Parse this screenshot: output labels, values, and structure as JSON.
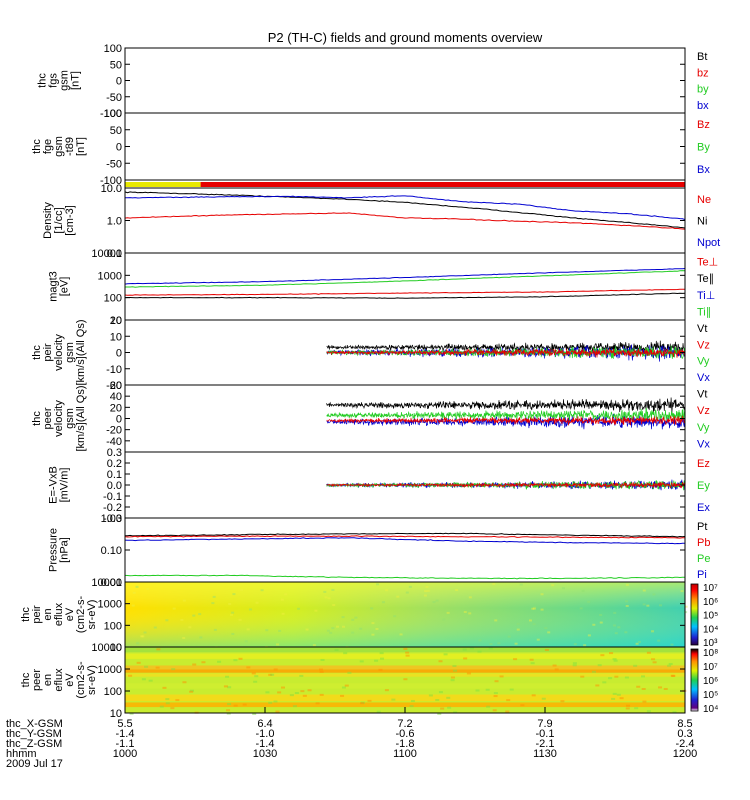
{
  "title": "P2 (TH-C) fields and ground moments overview",
  "colors": {
    "black": "#000000",
    "red": "#e60000",
    "green": "#22cc22",
    "blue": "#0000d0",
    "yellow": "#e8e800",
    "frame": "#000000"
  },
  "chart_data": {
    "type": "multi-panel time series",
    "title": "P2 (TH-C) fields and ground moments overview",
    "time_ticks": [
      "1000",
      "1030",
      "1100",
      "1130",
      "1200"
    ],
    "footer": {
      "rows": [
        {
          "label": "thc_X-GSM",
          "values": [
            "5.5",
            "6.4",
            "7.2",
            "7.9",
            "8.5"
          ]
        },
        {
          "label": "thc_Y-GSM",
          "values": [
            "-1.4",
            "-1.0",
            "-0.6",
            "-0.1",
            "0.3"
          ]
        },
        {
          "label": "thc_Z-GSM",
          "values": [
            "-1.1",
            "-1.4",
            "-1.8",
            "-2.1",
            "-2.4"
          ]
        },
        {
          "label": "hhmm",
          "values": [
            "1000",
            "1030",
            "1100",
            "1130",
            "1200"
          ]
        }
      ],
      "date": "2009 Jul 17"
    },
    "panels": [
      {
        "id": "fgs",
        "ylabel": [
          "thc",
          "fgs",
          "gsm",
          "[nT]"
        ],
        "scale": "linear",
        "yrange": [
          -100,
          100
        ],
        "ticks": [
          "100",
          "50",
          "0",
          "-50",
          "-100"
        ],
        "legend": [
          {
            "text": "Bt",
            "color": "black"
          },
          {
            "text": "bz",
            "color": "red"
          },
          {
            "text": "by",
            "color": "green"
          },
          {
            "text": "bx",
            "color": "blue"
          }
        ]
      },
      {
        "id": "fge",
        "ylabel": [
          "thc",
          "fge",
          "gsm",
          "-t89",
          "[nT]"
        ],
        "scale": "linear",
        "yrange": [
          -100,
          100
        ],
        "ticks": [
          "100",
          "50",
          "0",
          "-50",
          "-100"
        ],
        "legend": [
          {
            "text": "Bz",
            "color": "red"
          },
          {
            "text": "By",
            "color": "green"
          },
          {
            "text": "Bx",
            "color": "blue"
          }
        ]
      },
      {
        "id": "mode_bar",
        "mode_segments": [
          {
            "from": 0.0,
            "to": 0.135,
            "color": "yellow"
          },
          {
            "from": 0.135,
            "to": 1.0,
            "color": "red"
          }
        ]
      },
      {
        "id": "density",
        "ylabel": [
          "Density",
          "[1/cc]",
          "[cm-3]"
        ],
        "scale": "log",
        "yrange": [
          0.1,
          10
        ],
        "ticks": [
          "10.0",
          "1.0",
          "0.1"
        ],
        "legend": [
          {
            "text": "Ne",
            "color": "red"
          },
          {
            "text": "Ni",
            "color": "black"
          },
          {
            "text": "Npot",
            "color": "blue"
          }
        ],
        "series": [
          {
            "name": "Ni",
            "color": "black",
            "x": [
              0,
              0.1,
              0.2,
              0.3,
              0.4,
              0.5,
              0.6,
              0.7,
              0.8,
              0.9,
              1.0
            ],
            "y": [
              7.5,
              6.8,
              6.0,
              5.2,
              4.5,
              3.6,
              2.6,
              1.8,
              1.2,
              0.85,
              0.6
            ]
          },
          {
            "name": "Ne",
            "color": "red",
            "x": [
              0,
              0.1,
              0.2,
              0.3,
              0.4,
              0.5,
              0.6,
              0.7,
              0.8,
              0.9,
              1.0
            ],
            "y": [
              1.2,
              1.35,
              1.5,
              1.6,
              1.7,
              1.2,
              1.1,
              0.95,
              0.85,
              0.7,
              0.55
            ]
          },
          {
            "name": "Npot",
            "color": "blue",
            "x": [
              0,
              0.1,
              0.2,
              0.3,
              0.4,
              0.5,
              0.6,
              0.7,
              0.8,
              0.9,
              1.0
            ],
            "y": [
              5.0,
              5.2,
              5.4,
              5.5,
              5.0,
              5.8,
              3.8,
              3.2,
              2.0,
              1.6,
              1.1
            ]
          }
        ]
      },
      {
        "id": "temp",
        "ylabel": [
          "magt3",
          "[eV]"
        ],
        "scale": "log",
        "yrange": [
          10,
          10000
        ],
        "ticks": [
          "10000",
          "1000",
          "100",
          "10"
        ],
        "legend": [
          {
            "text": "Te⊥",
            "color": "red"
          },
          {
            "text": "Te∥",
            "color": "black"
          },
          {
            "text": "Ti⊥",
            "color": "blue"
          },
          {
            "text": "Ti∥",
            "color": "green"
          }
        ],
        "series": [
          {
            "name": "Ti⊥",
            "color": "blue",
            "x": [
              0,
              0.25,
              0.5,
              0.75,
              1.0
            ],
            "y": [
              420,
              520,
              800,
              1300,
              2000
            ]
          },
          {
            "name": "Ti∥",
            "color": "green",
            "x": [
              0,
              0.25,
              0.5,
              0.75,
              1.0
            ],
            "y": [
              300,
              360,
              560,
              950,
              1600
            ]
          },
          {
            "name": "Te⊥",
            "color": "red",
            "x": [
              0,
              0.25,
              0.5,
              0.75,
              1.0
            ],
            "y": [
              130,
              140,
              160,
              180,
              240
            ]
          },
          {
            "name": "Te∥",
            "color": "black",
            "x": [
              0,
              0.25,
              0.5,
              0.75,
              1.0
            ],
            "y": [
              100,
              100,
              95,
              110,
              160
            ]
          }
        ]
      },
      {
        "id": "peir_v",
        "ylabel": [
          "thc",
          "peir",
          "velocity",
          "gsm",
          "[km/s](All Qs)"
        ],
        "scale": "linear",
        "yrange": [
          -20,
          20
        ],
        "ticks": [
          "20",
          "10",
          "0",
          "-10",
          "-20"
        ],
        "legend": [
          {
            "text": "Vt",
            "color": "black"
          },
          {
            "text": "Vz",
            "color": "red"
          },
          {
            "text": "Vy",
            "color": "green"
          },
          {
            "text": "Vx",
            "color": "blue"
          }
        ]
      },
      {
        "id": "peer_v",
        "ylabel": [
          "thc",
          "peer",
          "velocity",
          "gsm",
          "[km/s](All Qs)"
        ],
        "scale": "linear",
        "yrange": [
          -60,
          60
        ],
        "ticks": [
          "60",
          "40",
          "20",
          "0",
          "-20",
          "-40"
        ],
        "legend": [
          {
            "text": "Vt",
            "color": "black"
          },
          {
            "text": "Vz",
            "color": "red"
          },
          {
            "text": "Vy",
            "color": "green"
          },
          {
            "text": "Vx",
            "color": "blue"
          }
        ]
      },
      {
        "id": "efield",
        "ylabel": [
          "E=-VxB",
          "[mV/m]"
        ],
        "scale": "linear",
        "yrange": [
          -0.3,
          0.3
        ],
        "ticks": [
          "0.3",
          "0.2",
          "0.1",
          "0.0",
          "-0.1",
          "-0.2",
          "-0.3"
        ],
        "legend": [
          {
            "text": "Ez",
            "color": "red"
          },
          {
            "text": "Ey",
            "color": "green"
          },
          {
            "text": "Ex",
            "color": "blue"
          }
        ]
      },
      {
        "id": "pressure",
        "ylabel": [
          "Pressure",
          "[nPa]"
        ],
        "scale": "log",
        "yrange": [
          0.01,
          1.0
        ],
        "ticks": [
          "1.00",
          "0.10",
          "0.01"
        ],
        "legend": [
          {
            "text": "Pt",
            "color": "black"
          },
          {
            "text": "Pb",
            "color": "red"
          },
          {
            "text": "Pe",
            "color": "green"
          },
          {
            "text": "Pi",
            "color": "blue"
          }
        ],
        "series": [
          {
            "name": "Pt",
            "color": "black",
            "x": [
              0,
              0.2,
              0.4,
              0.6,
              0.8,
              1.0
            ],
            "y": [
              0.28,
              0.3,
              0.32,
              0.33,
              0.29,
              0.26
            ]
          },
          {
            "name": "Pb",
            "color": "red",
            "x": [
              0,
              0.2,
              0.4,
              0.6,
              0.8,
              1.0
            ],
            "y": [
              0.26,
              0.27,
              0.27,
              0.26,
              0.25,
              0.24
            ]
          },
          {
            "name": "Pi",
            "color": "blue",
            "x": [
              0,
              0.2,
              0.4,
              0.6,
              0.8,
              1.0
            ],
            "y": [
              0.2,
              0.22,
              0.24,
              0.19,
              0.17,
              0.16
            ]
          },
          {
            "name": "Pe",
            "color": "green",
            "x": [
              0,
              0.2,
              0.4,
              0.6,
              0.8,
              1.0
            ],
            "y": [
              0.016,
              0.016,
              0.014,
              0.013,
              0.013,
              0.014
            ]
          }
        ]
      },
      {
        "id": "peir_spec",
        "ylabel": [
          "thc",
          "peir",
          "en",
          "eflux",
          "eV",
          "(cm2-s-",
          "sr-eV)"
        ],
        "scale": "log",
        "yrange": [
          10,
          10000
        ],
        "ticks": [
          "10000",
          "1000",
          "100",
          "10"
        ],
        "colorbar": [
          "10⁷",
          "10⁶",
          "10⁵",
          "10⁴",
          "10³"
        ]
      },
      {
        "id": "peer_spec",
        "ylabel": [
          "thc",
          "peer",
          "en",
          "eflux",
          "eV",
          "(cm2-s-",
          "sr-eV)"
        ],
        "scale": "log",
        "yrange": [
          10,
          10000
        ],
        "ticks": [
          "10000",
          "1000",
          "100",
          "10"
        ],
        "colorbar": [
          "10⁸",
          "10⁷",
          "10⁶",
          "10⁵",
          "10⁴"
        ]
      }
    ]
  }
}
